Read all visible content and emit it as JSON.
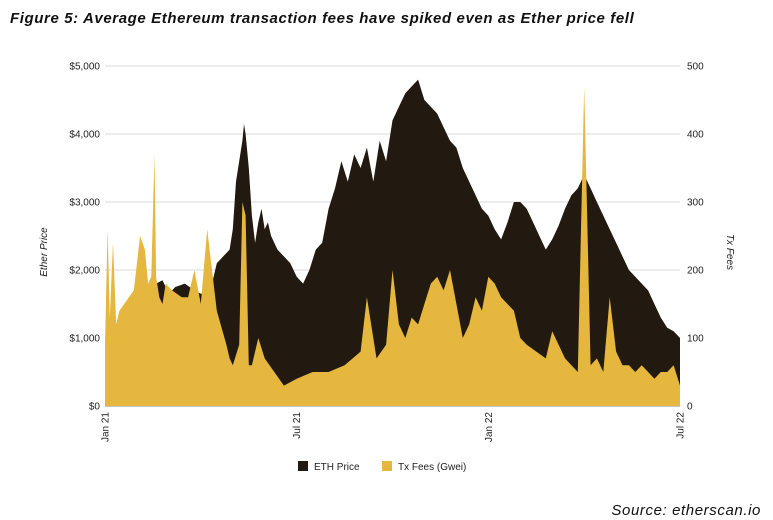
{
  "figure_title": "Figure 5: Average Ethereum transaction fees have spiked even as Ether price fell",
  "source": "Source: etherscan.io",
  "colors": {
    "eth_price": "#221a10",
    "tx_fees": "#e5b73e"
  },
  "chart_data": {
    "type": "area",
    "x_tick_labels": [
      "Jan 21",
      "Jul 21",
      "Jan 22",
      "Jul 22"
    ],
    "x_tick_positions": [
      0,
      6,
      12,
      18
    ],
    "x_range": [
      0,
      18
    ],
    "y_left": {
      "label": "Ether Price",
      "range": [
        0,
        5000
      ],
      "ticks": [
        0,
        1000,
        2000,
        3000,
        4000,
        5000
      ],
      "tick_labels": [
        "$0",
        "$1,000",
        "$2,000",
        "$3,000",
        "$4,000",
        "$5,000"
      ]
    },
    "y_right": {
      "label": "Tx Fees",
      "range": [
        0,
        500
      ],
      "ticks": [
        0,
        100,
        200,
        300,
        400,
        500
      ],
      "tick_labels": [
        "0",
        "100",
        "200",
        "300",
        "400",
        "500"
      ]
    },
    "legend": [
      "ETH Price",
      "Tx Fees (Gwei)"
    ],
    "series": [
      {
        "name": "ETH Price",
        "axis": "left",
        "x": [
          0,
          0.1,
          0.2,
          0.3,
          0.5,
          0.8,
          1.0,
          1.3,
          1.6,
          1.8,
          2.0,
          2.2,
          2.5,
          2.8,
          3.0,
          3.3,
          3.5,
          3.7,
          3.9,
          4.0,
          4.1,
          4.2,
          4.3,
          4.35,
          4.4,
          4.5,
          4.6,
          4.7,
          4.8,
          4.9,
          5.0,
          5.1,
          5.2,
          5.4,
          5.6,
          5.8,
          6.0,
          6.2,
          6.4,
          6.6,
          6.8,
          7.0,
          7.2,
          7.4,
          7.6,
          7.8,
          8.0,
          8.2,
          8.4,
          8.6,
          8.8,
          9.0,
          9.2,
          9.4,
          9.6,
          9.8,
          10.0,
          10.2,
          10.4,
          10.6,
          10.8,
          11.0,
          11.2,
          11.4,
          11.6,
          11.8,
          12.0,
          12.2,
          12.4,
          12.6,
          12.8,
          13.0,
          13.2,
          13.4,
          13.6,
          13.8,
          14.0,
          14.2,
          14.4,
          14.6,
          14.8,
          15.0,
          15.2,
          15.4,
          15.6,
          15.8,
          16.0,
          16.2,
          16.4,
          16.6,
          16.8,
          17.0,
          17.2,
          17.4,
          17.6,
          17.8,
          18.0
        ],
        "values": [
          730,
          900,
          1050,
          1150,
          1300,
          1400,
          1550,
          1750,
          1800,
          1850,
          1650,
          1750,
          1800,
          1700,
          1650,
          1700,
          2100,
          2200,
          2300,
          2600,
          3300,
          3600,
          3900,
          4150,
          4000,
          3500,
          2800,
          2400,
          2700,
          2900,
          2600,
          2700,
          2500,
          2300,
          2200,
          2100,
          1900,
          1800,
          2000,
          2300,
          2400,
          2900,
          3200,
          3600,
          3300,
          3700,
          3500,
          3800,
          3300,
          3900,
          3600,
          4200,
          4400,
          4600,
          4700,
          4800,
          4500,
          4400,
          4300,
          4100,
          3900,
          3800,
          3500,
          3300,
          3100,
          2900,
          2800,
          2600,
          2450,
          2700,
          3000,
          3000,
          2900,
          2700,
          2500,
          2300,
          2450,
          2650,
          2900,
          3100,
          3200,
          3400,
          3200,
          3000,
          2800,
          2600,
          2400,
          2200,
          2000,
          1900,
          1800,
          1700,
          1500,
          1300,
          1150,
          1100,
          1000
        ]
      },
      {
        "name": "Tx Fees (Gwei)",
        "axis": "right",
        "x": [
          0,
          0.08,
          0.15,
          0.25,
          0.35,
          0.45,
          0.6,
          0.9,
          1.1,
          1.25,
          1.35,
          1.45,
          1.55,
          1.6,
          1.7,
          1.8,
          1.9,
          2.1,
          2.4,
          2.6,
          2.8,
          3.0,
          3.2,
          3.5,
          3.8,
          3.9,
          4.0,
          4.2,
          4.3,
          4.4,
          4.5,
          4.6,
          4.8,
          5.0,
          5.3,
          5.6,
          6.0,
          6.5,
          7.0,
          7.5,
          8.0,
          8.2,
          8.5,
          8.8,
          9.0,
          9.2,
          9.4,
          9.6,
          9.8,
          10.0,
          10.2,
          10.4,
          10.6,
          10.8,
          11.0,
          11.2,
          11.4,
          11.6,
          11.8,
          12.0,
          12.2,
          12.4,
          12.6,
          12.8,
          13.0,
          13.2,
          13.5,
          13.8,
          14.0,
          14.2,
          14.4,
          14.6,
          14.8,
          15.0,
          15.2,
          15.4,
          15.6,
          15.8,
          16.0,
          16.2,
          16.4,
          16.6,
          16.8,
          17.0,
          17.2,
          17.4,
          17.6,
          17.8,
          18.0
        ],
        "values": [
          90,
          260,
          130,
          240,
          120,
          140,
          150,
          170,
          250,
          230,
          180,
          190,
          370,
          190,
          160,
          150,
          180,
          170,
          160,
          160,
          200,
          150,
          260,
          140,
          90,
          70,
          60,
          90,
          300,
          280,
          60,
          60,
          100,
          70,
          50,
          30,
          40,
          50,
          50,
          60,
          80,
          160,
          70,
          90,
          200,
          120,
          100,
          130,
          120,
          150,
          180,
          190,
          170,
          200,
          150,
          100,
          120,
          160,
          140,
          190,
          180,
          160,
          150,
          140,
          100,
          90,
          80,
          70,
          110,
          90,
          70,
          60,
          50,
          470,
          60,
          70,
          50,
          160,
          80,
          60,
          60,
          50,
          60,
          50,
          40,
          50,
          50,
          60,
          30
        ]
      }
    ]
  }
}
